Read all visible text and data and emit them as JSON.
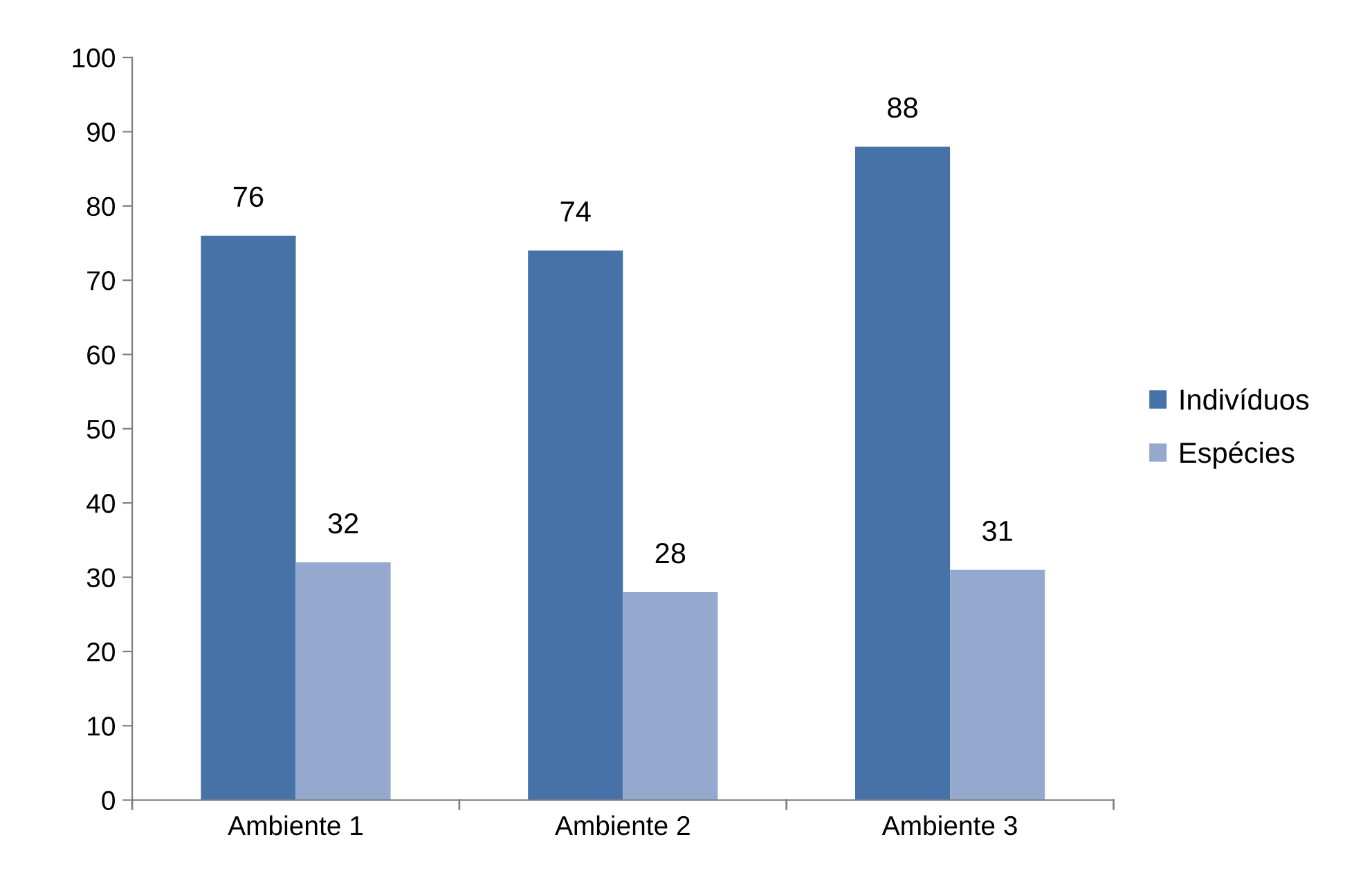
{
  "chart_data": {
    "type": "bar",
    "categories": [
      "Ambiente 1",
      "Ambiente 2",
      "Ambiente 3"
    ],
    "series": [
      {
        "name": "Indivíduos",
        "color": "#4672a8",
        "values": [
          76,
          74,
          88
        ]
      },
      {
        "name": "Espécies",
        "color": "#95a9cf",
        "values": [
          32,
          28,
          31
        ]
      }
    ],
    "ylim": [
      0,
      100
    ],
    "yticks": [
      0,
      10,
      20,
      30,
      40,
      50,
      60,
      70,
      80,
      90,
      100
    ],
    "data_labels": true,
    "legend": "right",
    "grid": false
  }
}
